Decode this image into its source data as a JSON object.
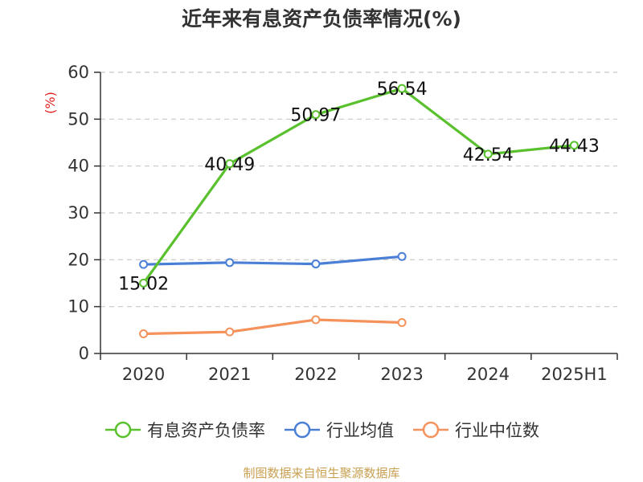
{
  "chart_data": {
    "type": "line",
    "title": "近年来有息资产负债率情况(%)",
    "ylabel": "(%)",
    "categories": [
      "2020",
      "2021",
      "2022",
      "2023",
      "2024",
      "2025H1"
    ],
    "ylim": [
      0,
      60
    ],
    "yticks": [
      0,
      10,
      20,
      30,
      40,
      50,
      60
    ],
    "grid": true,
    "legend_position": "bottom",
    "series": [
      {
        "name": "有息资产负债率",
        "color": "#5ac12e",
        "values": [
          15.02,
          40.49,
          50.97,
          56.54,
          42.54,
          44.43
        ],
        "labels": [
          "15.02",
          "40.49",
          "50.97",
          "56.54",
          "42.54",
          "44.43"
        ]
      },
      {
        "name": "行业均值",
        "color": "#4a7fd6",
        "values": [
          19.0,
          19.4,
          19.1,
          20.7,
          null,
          null
        ]
      },
      {
        "name": "行业中位数",
        "color": "#f5915a",
        "values": [
          4.2,
          4.6,
          7.2,
          6.6,
          null,
          null
        ]
      }
    ]
  },
  "source": "制图数据来自恒生聚源数据库"
}
